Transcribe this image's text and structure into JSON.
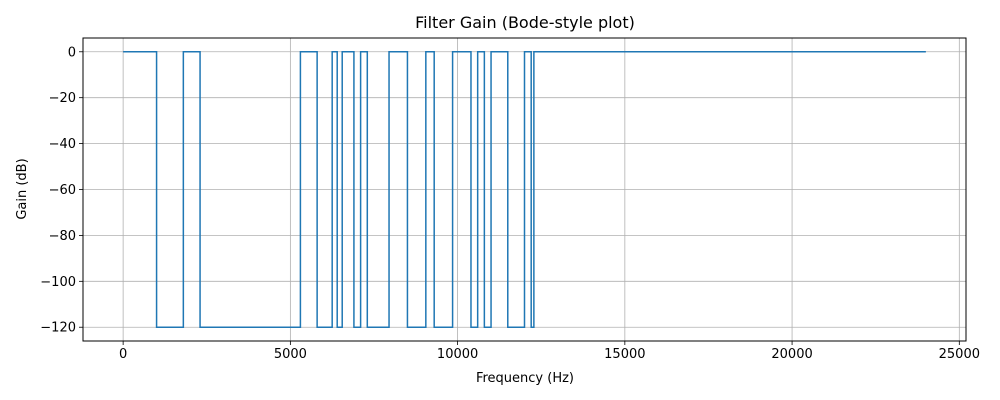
{
  "chart_data": {
    "type": "line",
    "title": "Filter Gain (Bode-style plot)",
    "xlabel": "Frequency (Hz)",
    "ylabel": "Gain (dB)",
    "xlim": [
      -1200,
      25200
    ],
    "ylim": [
      -126,
      6
    ],
    "xticks": [
      0,
      5000,
      10000,
      15000,
      20000,
      25000
    ],
    "xtick_labels": [
      "0",
      "5000",
      "10000",
      "15000",
      "20000",
      "25000"
    ],
    "yticks": [
      0,
      -20,
      -40,
      -60,
      -80,
      -100,
      -120
    ],
    "ytick_labels": [
      "0",
      "−20",
      "−40",
      "−60",
      "−80",
      "−100",
      "−120"
    ],
    "grid": true,
    "line_color": "#1f77b4",
    "series": [
      {
        "x": [
          0,
          1000,
          1000,
          1800,
          1800,
          2300,
          2300,
          5300,
          5300,
          5800,
          5800,
          6250,
          6250,
          6400,
          6400,
          6550,
          6550,
          6900,
          6900,
          7100,
          7100,
          7300,
          7300,
          7950,
          7950,
          8500,
          8500,
          9050,
          9050,
          9300,
          9300,
          9850,
          9850,
          10400,
          10400,
          10600,
          10600,
          10800,
          10800,
          11000,
          11000,
          11500,
          11500,
          12000,
          12000,
          12200,
          12200,
          12280,
          12280,
          24000
        ],
        "y": [
          0,
          0,
          -120,
          -120,
          0,
          0,
          -120,
          -120,
          0,
          0,
          -120,
          -120,
          0,
          0,
          -120,
          -120,
          0,
          0,
          -120,
          -120,
          0,
          0,
          -120,
          -120,
          0,
          0,
          -120,
          -120,
          0,
          0,
          -120,
          -120,
          0,
          0,
          -120,
          -120,
          0,
          0,
          -120,
          -120,
          0,
          0,
          -120,
          -120,
          0,
          0,
          -120,
          -120,
          0,
          0
        ]
      }
    ]
  }
}
